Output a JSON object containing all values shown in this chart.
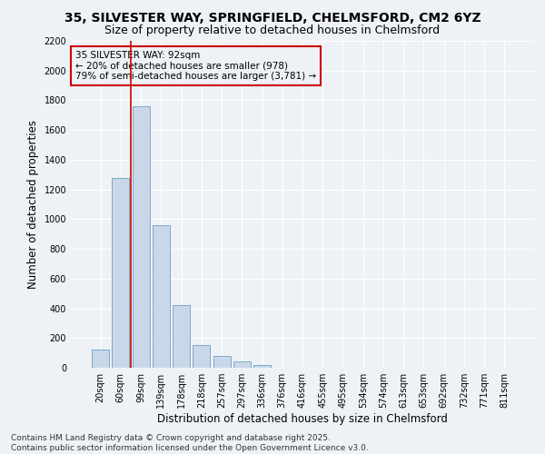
{
  "title_line1": "35, SILVESTER WAY, SPRINGFIELD, CHELMSFORD, CM2 6YZ",
  "title_line2": "Size of property relative to detached houses in Chelmsford",
  "xlabel": "Distribution of detached houses by size in Chelmsford",
  "ylabel": "Number of detached properties",
  "bar_labels": [
    "20sqm",
    "60sqm",
    "99sqm",
    "139sqm",
    "178sqm",
    "218sqm",
    "257sqm",
    "297sqm",
    "336sqm",
    "376sqm",
    "416sqm",
    "455sqm",
    "495sqm",
    "534sqm",
    "574sqm",
    "613sqm",
    "653sqm",
    "692sqm",
    "732sqm",
    "771sqm",
    "811sqm"
  ],
  "bar_values": [
    120,
    1280,
    1760,
    960,
    420,
    155,
    80,
    40,
    20,
    0,
    0,
    0,
    0,
    0,
    0,
    0,
    0,
    0,
    0,
    0,
    0
  ],
  "bar_color": "#c8d8e8",
  "bar_edgecolor": "#7aaac8",
  "ylim": [
    0,
    2200
  ],
  "yticks": [
    0,
    200,
    400,
    600,
    800,
    1000,
    1200,
    1400,
    1600,
    1800,
    2000,
    2200
  ],
  "vline_x_idx": 2,
  "vline_color": "#cc0000",
  "annotation_text": "35 SILVESTER WAY: 92sqm\n← 20% of detached houses are smaller (978)\n79% of semi-detached houses are larger (3,781) →",
  "annotation_box_color": "#cc0000",
  "footnote": "Contains HM Land Registry data © Crown copyright and database right 2025.\nContains public sector information licensed under the Open Government Licence v3.0.",
  "background_color": "#eef2f6",
  "grid_color": "#ffffff",
  "title_fontsize": 10,
  "subtitle_fontsize": 9,
  "axis_label_fontsize": 8.5,
  "tick_fontsize": 7,
  "annotation_fontsize": 7.5,
  "footnote_fontsize": 6.5
}
